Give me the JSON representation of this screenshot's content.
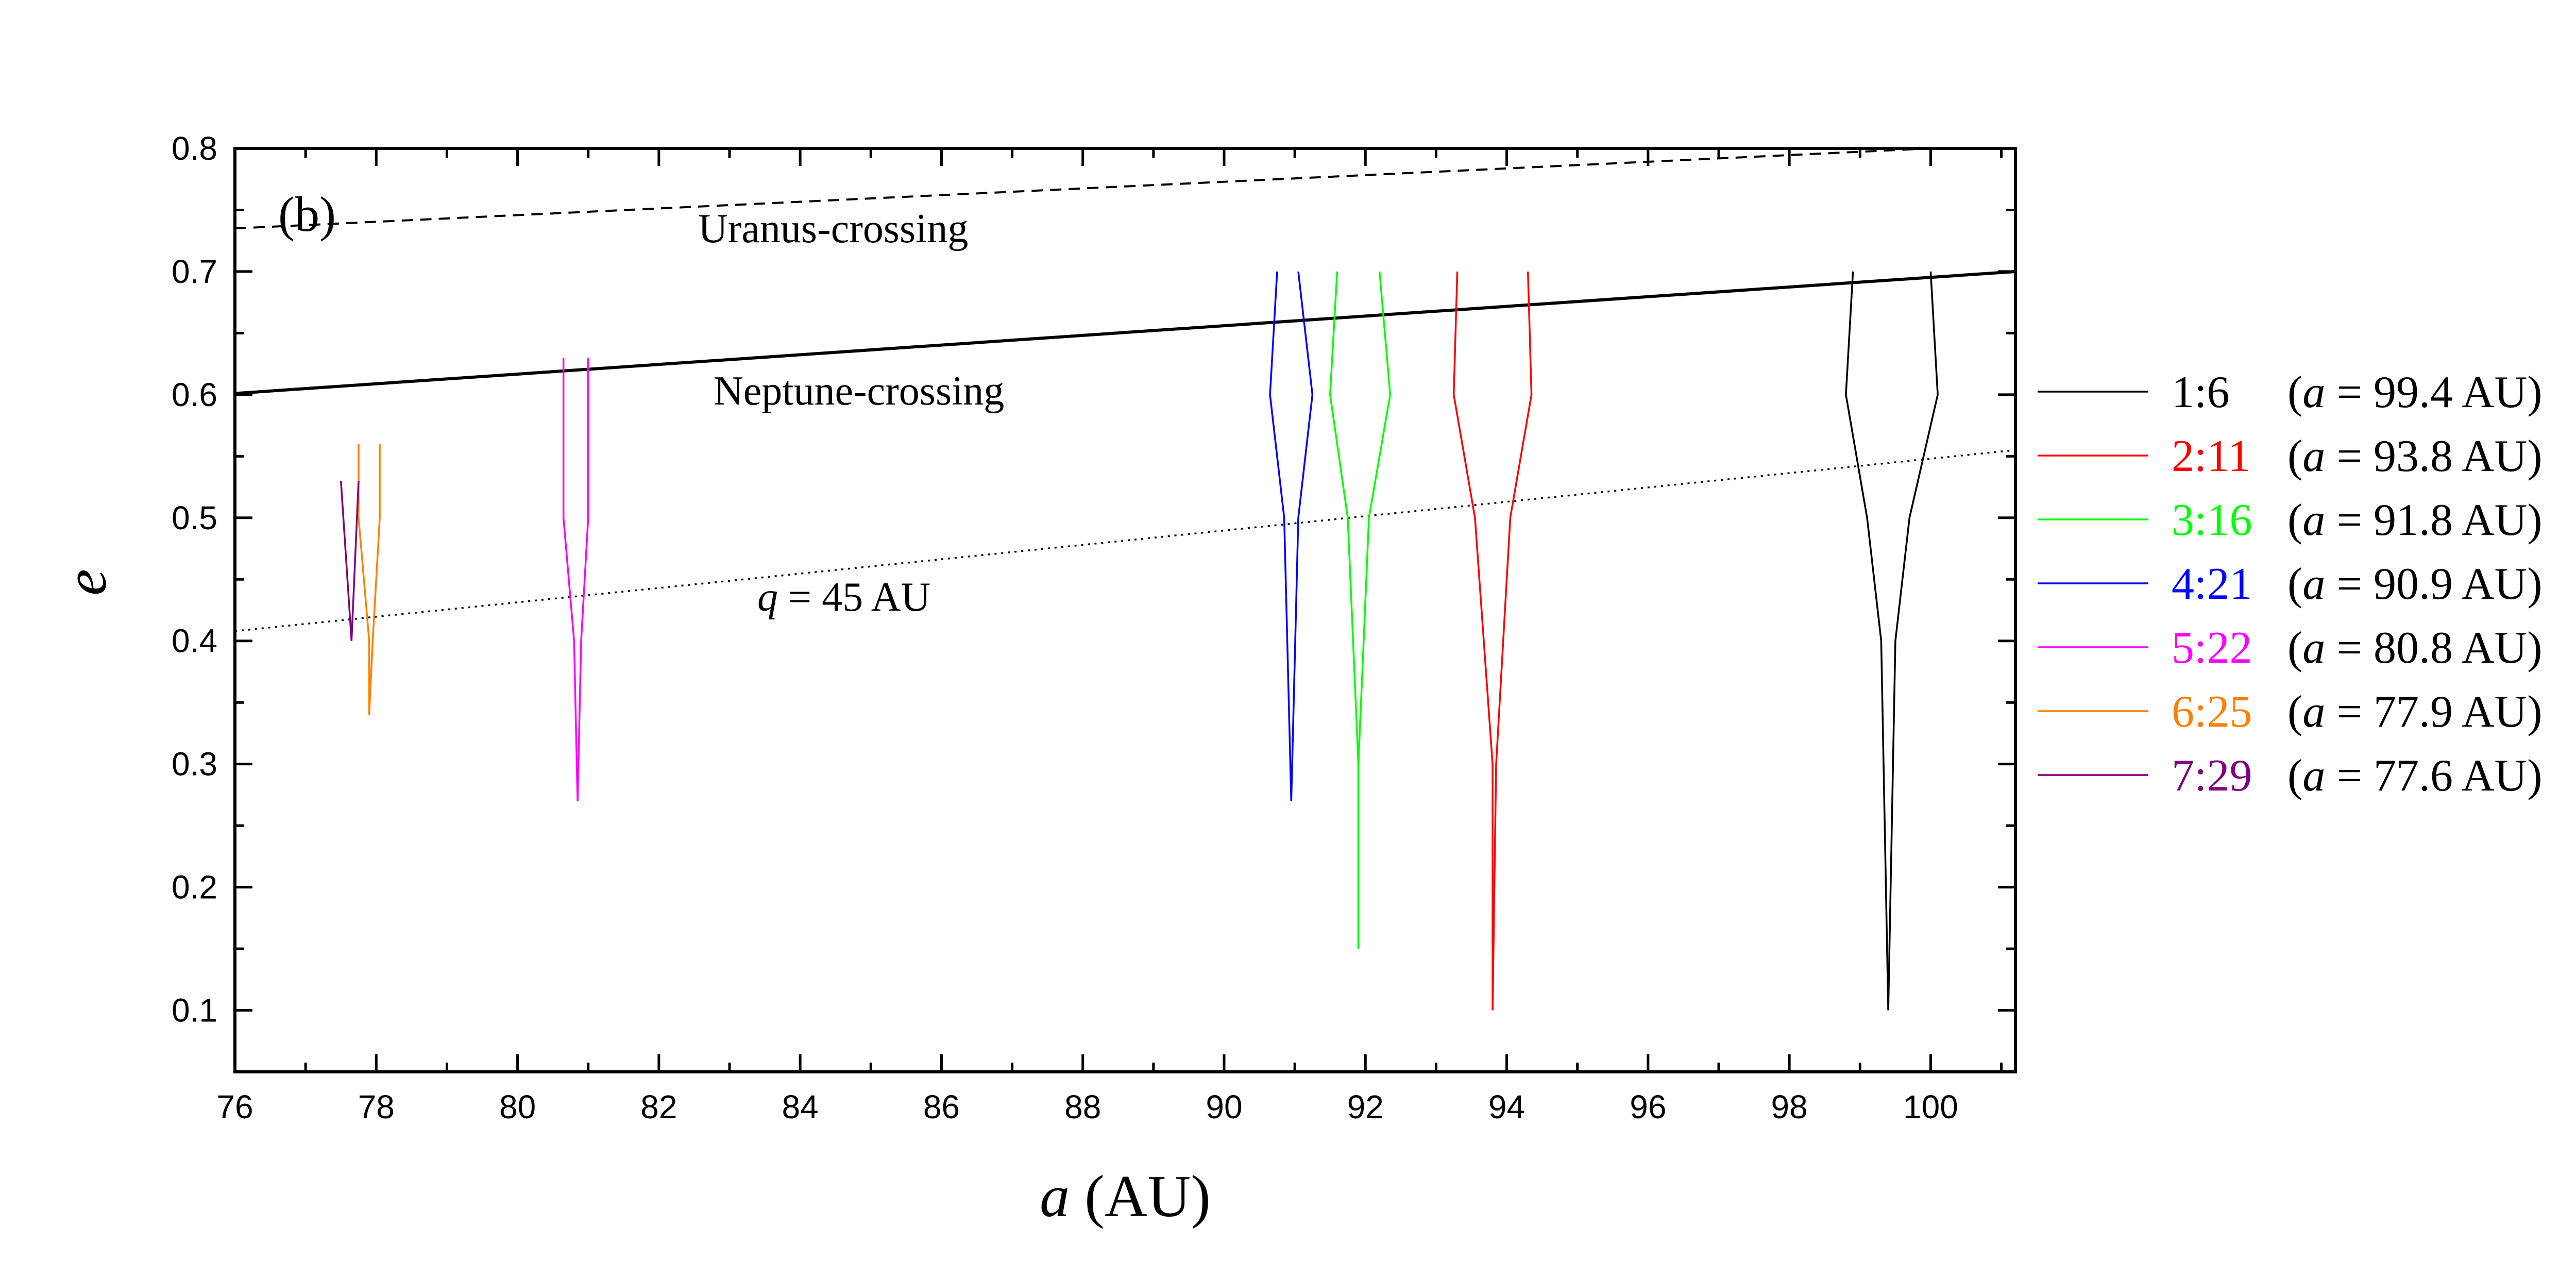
{
  "chart_data": {
    "type": "line",
    "panel_label": "(b)",
    "xlabel_var": "a",
    "xlabel_unit": "(AU)",
    "ylabel": "e",
    "xlim": [
      76,
      101.2
    ],
    "ylim": [
      0.05,
      0.8
    ],
    "x_ticks": [
      76,
      78,
      80,
      82,
      84,
      86,
      88,
      90,
      92,
      94,
      96,
      98,
      100
    ],
    "x_tick_labels": [
      "76",
      "78",
      "80",
      "82",
      "84",
      "86",
      "88",
      "90",
      "92",
      "94",
      "96",
      "98",
      "100"
    ],
    "y_ticks": [
      0.1,
      0.2,
      0.3,
      0.4,
      0.5,
      0.6,
      0.7,
      0.8
    ],
    "y_tick_labels": [
      "0.1",
      "0.2",
      "0.3",
      "0.4",
      "0.5",
      "0.6",
      "0.7",
      "0.8"
    ],
    "reference_lines": [
      {
        "name": "Uranus-crossing",
        "label": "Uranus-crossing",
        "style": "dashed",
        "x": [
          76,
          100
        ],
        "y": [
          0.735,
          0.8
        ]
      },
      {
        "name": "Neptune-crossing",
        "label": "Neptune-crossing",
        "style": "solid",
        "x": [
          76,
          101.2
        ],
        "y": [
          0.601,
          0.7
        ]
      },
      {
        "name": "q-45-AU",
        "label_var": "q",
        "label_rest": " = 45 AU",
        "style": "dotted",
        "x": [
          76,
          101.2
        ],
        "y": [
          0.408,
          0.555
        ]
      }
    ],
    "series": [
      {
        "name": "1:6",
        "color": "#000000",
        "a_value": "99.4 AU",
        "left": {
          "a": [
            98.9,
            98.8,
            99.1,
            99.3,
            99.4
          ],
          "e": [
            0.7,
            0.6,
            0.5,
            0.4,
            0.1
          ]
        },
        "right": {
          "a": [
            100.0,
            100.1,
            99.7,
            99.5,
            99.4
          ],
          "e": [
            0.7,
            0.6,
            0.5,
            0.4,
            0.1
          ]
        }
      },
      {
        "name": "2:11",
        "color": "#ff0000",
        "a_value": "93.8 AU",
        "left": {
          "a": [
            93.3,
            93.25,
            93.55,
            93.8,
            93.8
          ],
          "e": [
            0.7,
            0.6,
            0.5,
            0.3,
            0.1
          ]
        },
        "right": {
          "a": [
            94.3,
            94.35,
            94.05,
            93.85,
            93.8
          ],
          "e": [
            0.7,
            0.6,
            0.5,
            0.3,
            0.1
          ]
        }
      },
      {
        "name": "3:16",
        "color": "#00ff00",
        "a_value": "91.8 AU",
        "left": {
          "a": [
            91.6,
            91.5,
            91.75,
            91.9,
            91.9
          ],
          "e": [
            0.7,
            0.6,
            0.5,
            0.3,
            0.15
          ]
        },
        "right": {
          "a": [
            92.2,
            92.35,
            92.05,
            91.9,
            91.9
          ],
          "e": [
            0.7,
            0.6,
            0.5,
            0.3,
            0.15
          ]
        }
      },
      {
        "name": "4:21",
        "color": "#0000ff",
        "a_value": "90.9 AU",
        "left": {
          "a": [
            90.75,
            90.65,
            90.85,
            90.95
          ],
          "e": [
            0.7,
            0.6,
            0.5,
            0.27
          ]
        },
        "right": {
          "a": [
            91.05,
            91.25,
            91.05,
            90.95
          ],
          "e": [
            0.7,
            0.6,
            0.5,
            0.27
          ]
        }
      },
      {
        "name": "5:22",
        "color": "#ff00ff",
        "a_value": "80.8 AU",
        "left": {
          "a": [
            80.65,
            80.65,
            80.8,
            80.85
          ],
          "e": [
            0.63,
            0.5,
            0.4,
            0.27
          ]
        },
        "right": {
          "a": [
            81.0,
            81.0,
            80.9,
            80.85
          ],
          "e": [
            0.63,
            0.5,
            0.4,
            0.27
          ]
        }
      },
      {
        "name": "6:25",
        "color": "#ff8000",
        "a_value": "77.9 AU",
        "left": {
          "a": [
            77.75,
            77.75,
            77.9,
            77.9
          ],
          "e": [
            0.56,
            0.5,
            0.4,
            0.34
          ]
        },
        "right": {
          "a": [
            78.05,
            78.05,
            77.95,
            77.9
          ],
          "e": [
            0.56,
            0.5,
            0.4,
            0.34
          ]
        }
      },
      {
        "name": "7:29",
        "color": "#800080",
        "a_value": "77.6 AU",
        "left": {
          "a": [
            77.5,
            77.65
          ],
          "e": [
            0.53,
            0.4
          ]
        },
        "right": {
          "a": [
            77.75,
            77.65
          ],
          "e": [
            0.53,
            0.4
          ]
        }
      }
    ]
  }
}
